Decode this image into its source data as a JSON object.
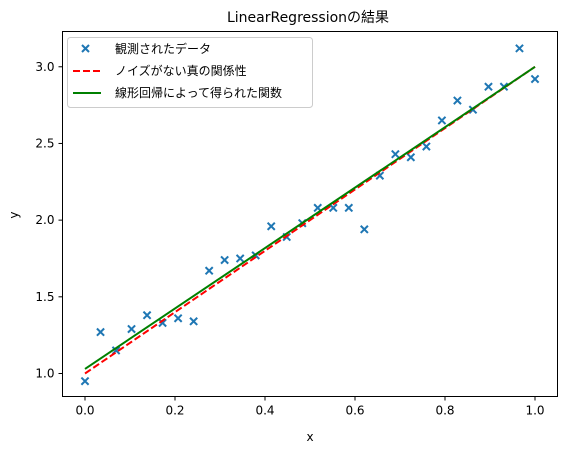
{
  "chart_data": {
    "type": "scatter",
    "title": "LinearRegressionの結果",
    "xlabel": "x",
    "ylabel": "y",
    "xlim": [
      -0.05,
      1.05
    ],
    "ylim": [
      0.85,
      3.23
    ],
    "grid": false,
    "legend_position": "upper-left",
    "x_ticks": [
      0.0,
      0.2,
      0.4,
      0.6,
      0.8,
      1.0
    ],
    "x_tick_labels": [
      "0.0",
      "0.2",
      "0.4",
      "0.6",
      "0.8",
      "1.0"
    ],
    "y_ticks": [
      1.0,
      1.5,
      2.0,
      2.5,
      3.0
    ],
    "y_tick_labels": [
      "1.0",
      "1.5",
      "2.0",
      "2.5",
      "3.0"
    ],
    "series": [
      {
        "name": "観測されたデータ",
        "kind": "scatter",
        "marker": "x",
        "color": "#1f77b4",
        "x": [
          0.0,
          0.0345,
          0.069,
          0.1034,
          0.1379,
          0.1724,
          0.2069,
          0.2414,
          0.2759,
          0.3103,
          0.3448,
          0.3793,
          0.4138,
          0.4483,
          0.4828,
          0.5172,
          0.5517,
          0.5862,
          0.6207,
          0.6552,
          0.6897,
          0.7241,
          0.7586,
          0.7931,
          0.8276,
          0.8621,
          0.8966,
          0.931,
          0.9655,
          1.0
        ],
        "y": [
          0.95,
          1.27,
          1.15,
          1.29,
          1.38,
          1.33,
          1.36,
          1.34,
          1.67,
          1.74,
          1.75,
          1.77,
          1.96,
          1.89,
          1.98,
          2.08,
          2.08,
          2.08,
          1.94,
          2.29,
          2.43,
          2.41,
          2.48,
          2.65,
          2.78,
          2.72,
          2.87,
          2.87,
          3.12,
          2.92
        ]
      },
      {
        "name": "ノイズがない真の関係性",
        "kind": "line",
        "style": "dashed",
        "color": "#ff0000",
        "x": [
          0.0,
          1.0
        ],
        "y": [
          1.0,
          3.0
        ]
      },
      {
        "name": "線形回帰によって得られた関数",
        "kind": "line",
        "style": "solid",
        "color": "#008000",
        "x": [
          0.0,
          1.0
        ],
        "y": [
          1.03,
          3.0
        ]
      }
    ]
  }
}
